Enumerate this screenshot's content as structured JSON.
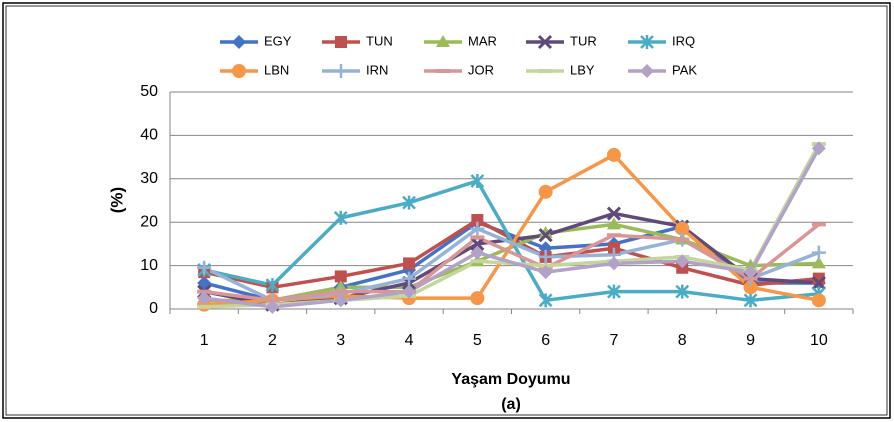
{
  "chart_data": {
    "type": "line",
    "x_label": "Yaşam Doyumu",
    "y_label": "(%)",
    "caption": "(a)",
    "categories": [
      "1",
      "2",
      "3",
      "4",
      "5",
      "6",
      "7",
      "8",
      "9",
      "10"
    ],
    "ylim": [
      0,
      50
    ],
    "yticks": [
      0,
      10,
      20,
      30,
      40,
      50
    ],
    "grid": true,
    "legend": "top",
    "series": [
      {
        "name": "EGY",
        "color": "#4472c4",
        "marker": "diamond",
        "values": [
          6,
          2,
          5,
          9,
          20,
          14,
          15,
          19,
          6,
          6
        ]
      },
      {
        "name": "TUN",
        "color": "#c0504d",
        "marker": "square",
        "values": [
          8.5,
          5,
          7.5,
          10.5,
          20.5,
          12,
          14,
          9.5,
          5.5,
          7
        ]
      },
      {
        "name": "MAR",
        "color": "#9bbb59",
        "marker": "triangle",
        "values": [
          2,
          2,
          5,
          5,
          11,
          17.5,
          19.5,
          16,
          10,
          10.5
        ]
      },
      {
        "name": "TUR",
        "color": "#604a7b",
        "marker": "x",
        "values": [
          4,
          1,
          2.5,
          6,
          15,
          17,
          22,
          19,
          7,
          6
        ]
      },
      {
        "name": "IRQ",
        "color": "#4bacc6",
        "marker": "star",
        "values": [
          9,
          5.5,
          21,
          24.5,
          29.5,
          2,
          4,
          4,
          2,
          3.5
        ]
      },
      {
        "name": "LBN",
        "color": "#f79646",
        "marker": "circle",
        "values": [
          1,
          2,
          3,
          2.5,
          2.5,
          27,
          35.5,
          18.5,
          5,
          2
        ]
      },
      {
        "name": "IRN",
        "color": "#95b3d7",
        "marker": "plus",
        "values": [
          9.5,
          2,
          3.5,
          7,
          18.5,
          12,
          12.5,
          16,
          7,
          13
        ]
      },
      {
        "name": "JOR",
        "color": "#d99694",
        "marker": "dash",
        "values": [
          4,
          2,
          4,
          4,
          16.5,
          9.5,
          17,
          16,
          7,
          19.5
        ]
      },
      {
        "name": "LBY",
        "color": "#c3d69b",
        "marker": "dash",
        "values": [
          0.5,
          1,
          2,
          3,
          11,
          10,
          11,
          12,
          9,
          38
        ]
      },
      {
        "name": "PAK",
        "color": "#b3a2c7",
        "marker": "diamond",
        "values": [
          2.5,
          0.5,
          2,
          4,
          13,
          8.5,
          10.5,
          11,
          8.5,
          37
        ]
      }
    ]
  }
}
